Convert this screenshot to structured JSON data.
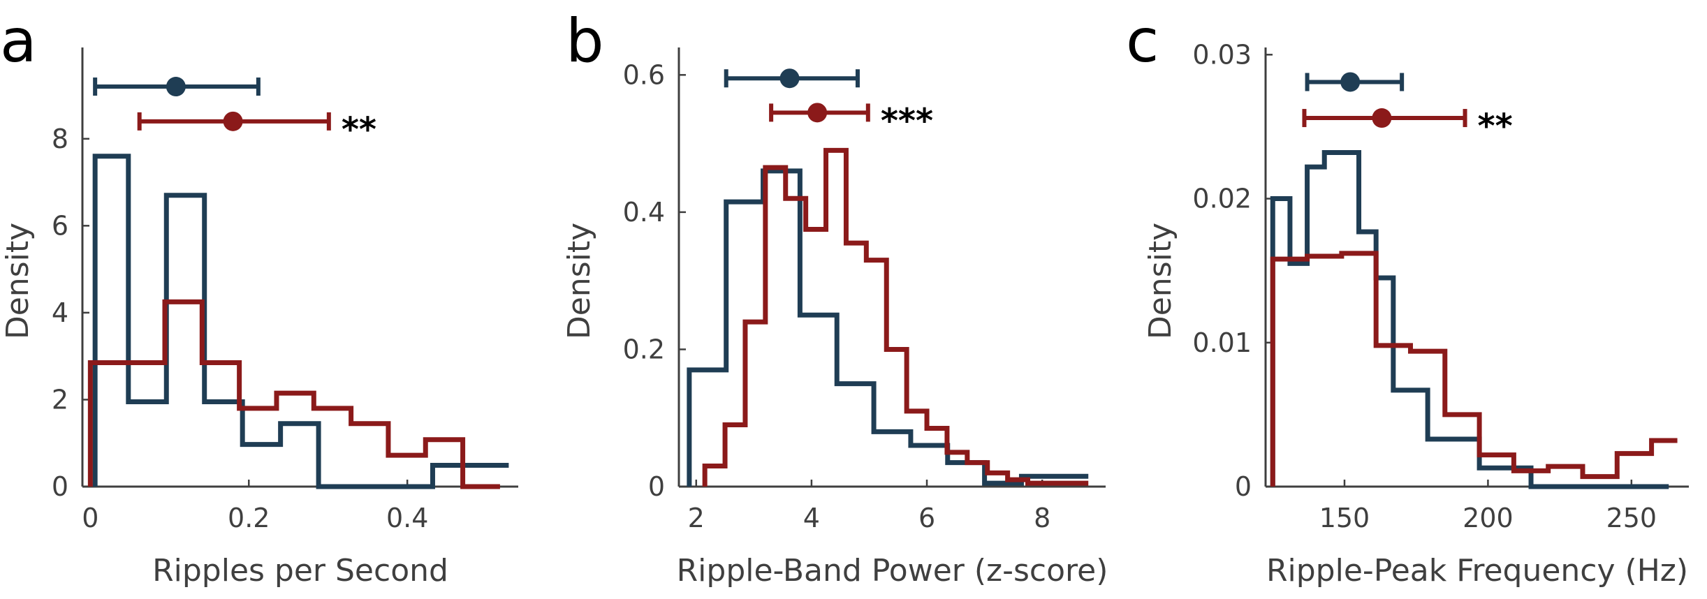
{
  "colors": {
    "control": "#1f3d54",
    "condition": "#8b1a1a",
    "axis": "#3f3f3f"
  },
  "chart_data": [
    {
      "type": "histogram",
      "panel": "a",
      "xlabel": "Ripples per Second",
      "ylabel": "Density",
      "xlim": [
        -0.01,
        0.54
      ],
      "ylim": [
        0,
        10.1
      ],
      "xticks": [
        0,
        0.2,
        0.4
      ],
      "xtick_labels": [
        "0",
        "0.2",
        "0.4"
      ],
      "yticks": [
        0,
        2,
        4,
        6,
        8
      ],
      "ytick_labels": [
        "0",
        "2",
        "4",
        "6",
        "8"
      ],
      "series": [
        {
          "color_key": "control",
          "edges": [
            0.006,
            0.048,
            0.096,
            0.144,
            0.192,
            0.24,
            0.288,
            0.432,
            0.528
          ],
          "values": [
            7.6,
            1.95,
            6.7,
            1.95,
            0.97,
            1.45,
            0,
            0.49
          ]
        },
        {
          "color_key": "condition",
          "edges": [
            0.0,
            0.094,
            0.141,
            0.188,
            0.235,
            0.282,
            0.329,
            0.376,
            0.423,
            0.47,
            0.517
          ],
          "values": [
            2.85,
            4.25,
            2.85,
            1.8,
            2.15,
            1.8,
            1.45,
            0.72,
            1.08,
            0
          ]
        }
      ],
      "errorbars": [
        {
          "color_key": "control",
          "mean": 0.108,
          "low": 0.006,
          "high": 0.212,
          "level": 9.2
        },
        {
          "color_key": "condition",
          "mean": 0.18,
          "low": 0.062,
          "high": 0.301,
          "level": 8.4
        }
      ],
      "significance": "**"
    },
    {
      "type": "histogram",
      "panel": "b",
      "xlabel": "Ripple-Band Power (z-score)",
      "ylabel": "Density",
      "xlim": [
        1.7,
        9.1
      ],
      "ylim": [
        0,
        0.64
      ],
      "xticks": [
        2,
        4,
        6,
        8
      ],
      "xtick_labels": [
        "2",
        "4",
        "6",
        "8"
      ],
      "yticks": [
        0,
        0.2,
        0.4,
        0.6
      ],
      "ytick_labels": [
        "0",
        "0.2",
        "0.4",
        "0.6"
      ],
      "series": [
        {
          "color_key": "control",
          "edges": [
            1.88,
            2.52,
            3.16,
            3.8,
            4.44,
            5.08,
            5.72,
            6.36,
            7.0,
            7.64,
            8.28,
            8.8
          ],
          "values": [
            0.17,
            0.415,
            0.46,
            0.25,
            0.15,
            0.08,
            0.06,
            0.035,
            0.005,
            0.015,
            0.015
          ]
        },
        {
          "color_key": "condition",
          "edges": [
            2.15,
            2.5,
            2.85,
            3.2,
            3.55,
            3.9,
            4.25,
            4.6,
            4.95,
            5.3,
            5.65,
            6.0,
            6.35,
            6.7,
            7.05,
            7.4,
            7.75,
            8.1,
            8.45,
            8.8
          ],
          "values": [
            0.03,
            0.09,
            0.24,
            0.465,
            0.42,
            0.375,
            0.49,
            0.355,
            0.33,
            0.2,
            0.11,
            0.085,
            0.05,
            0.035,
            0.02,
            0.01,
            0.005,
            0.005,
            0.005
          ]
        }
      ],
      "errorbars": [
        {
          "color_key": "control",
          "mean": 3.62,
          "low": 2.52,
          "high": 4.8,
          "level": 0.595
        },
        {
          "color_key": "condition",
          "mean": 4.1,
          "low": 3.3,
          "high": 4.98,
          "level": 0.545
        }
      ],
      "significance": "***"
    },
    {
      "type": "histogram",
      "panel": "c",
      "xlabel": "Ripple-Peak Frequency (Hz)",
      "ylabel": "Density",
      "xlim": [
        122.5,
        270
      ],
      "ylim": [
        0,
        0.0305
      ],
      "xticks": [
        150,
        200,
        250
      ],
      "xtick_labels": [
        "150",
        "200",
        "250"
      ],
      "yticks": [
        0,
        0.01,
        0.02,
        0.03
      ],
      "ytick_labels": [
        "0",
        "0.01",
        "0.02",
        "0.03"
      ],
      "series": [
        {
          "color_key": "control",
          "edges": [
            125,
            131,
            137,
            143,
            149,
            155,
            161,
            167,
            173,
            179,
            185,
            191,
            197,
            203,
            215,
            227,
            239,
            251,
            263
          ],
          "values": [
            0.02,
            0.0155,
            0.0222,
            0.0232,
            0.0232,
            0.0177,
            0.0145,
            0.0067,
            0.0067,
            0.0033,
            0.0033,
            0.0033,
            0.0013,
            0.0013,
            0,
            0,
            0,
            0
          ]
        },
        {
          "color_key": "condition",
          "edges": [
            125,
            137,
            149,
            161,
            173,
            185,
            197,
            209,
            221,
            233,
            245,
            257,
            266
          ],
          "values": [
            0.0158,
            0.016,
            0.0162,
            0.0098,
            0.0094,
            0.005,
            0.0022,
            0.0011,
            0.0014,
            0.0007,
            0.0023,
            0.0032
          ]
        }
      ],
      "errorbars": [
        {
          "color_key": "control",
          "mean": 152,
          "low": 137,
          "high": 170,
          "level": 0.0281
        },
        {
          "color_key": "condition",
          "mean": 163,
          "low": 136,
          "high": 192,
          "level": 0.0256
        }
      ],
      "significance": "**"
    }
  ]
}
